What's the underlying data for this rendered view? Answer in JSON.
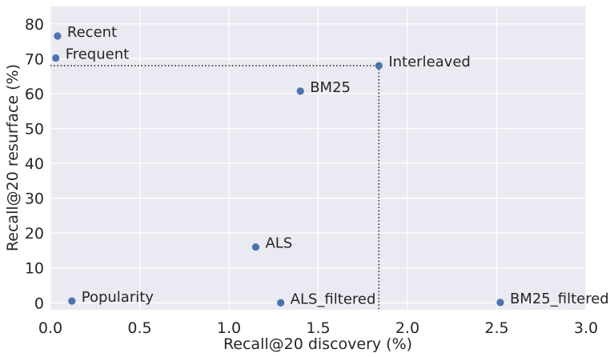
{
  "chart_data": {
    "type": "scatter",
    "xlabel": "Recall@20 discovery (%)",
    "ylabel": "Recall@20 resurface (%)",
    "xlim": [
      0,
      3.0
    ],
    "ylim": [
      -2,
      85
    ],
    "xticks": [
      0.0,
      0.5,
      1.0,
      1.5,
      2.0,
      2.5,
      3.0
    ],
    "xtick_labels": [
      "0.0",
      "0.5",
      "1.0",
      "1.5",
      "2.0",
      "2.5",
      "3.0"
    ],
    "yticks": [
      0,
      10,
      20,
      30,
      40,
      50,
      60,
      70,
      80
    ],
    "ytick_labels": [
      "0",
      "10",
      "20",
      "30",
      "40",
      "50",
      "60",
      "70",
      "80"
    ],
    "grid": true,
    "background": "#eaeaf2",
    "point_color": "#4c72b0",
    "points": [
      {
        "label": "Recent",
        "x": 0.04,
        "y": 76.5
      },
      {
        "label": "Frequent",
        "x": 0.03,
        "y": 70.2
      },
      {
        "label": "Interleaved",
        "x": 1.84,
        "y": 68.0
      },
      {
        "label": "BM25",
        "x": 1.4,
        "y": 60.7
      },
      {
        "label": "ALS",
        "x": 1.15,
        "y": 16.0
      },
      {
        "label": "Popularity",
        "x": 0.12,
        "y": 0.5
      },
      {
        "label": "ALS_filtered",
        "x": 1.29,
        "y": 0.0
      },
      {
        "label": "BM25_filtered",
        "x": 2.52,
        "y": 0.1
      }
    ],
    "reference_lines": {
      "x": 1.84,
      "y": 68.0,
      "style": "dotted"
    }
  }
}
